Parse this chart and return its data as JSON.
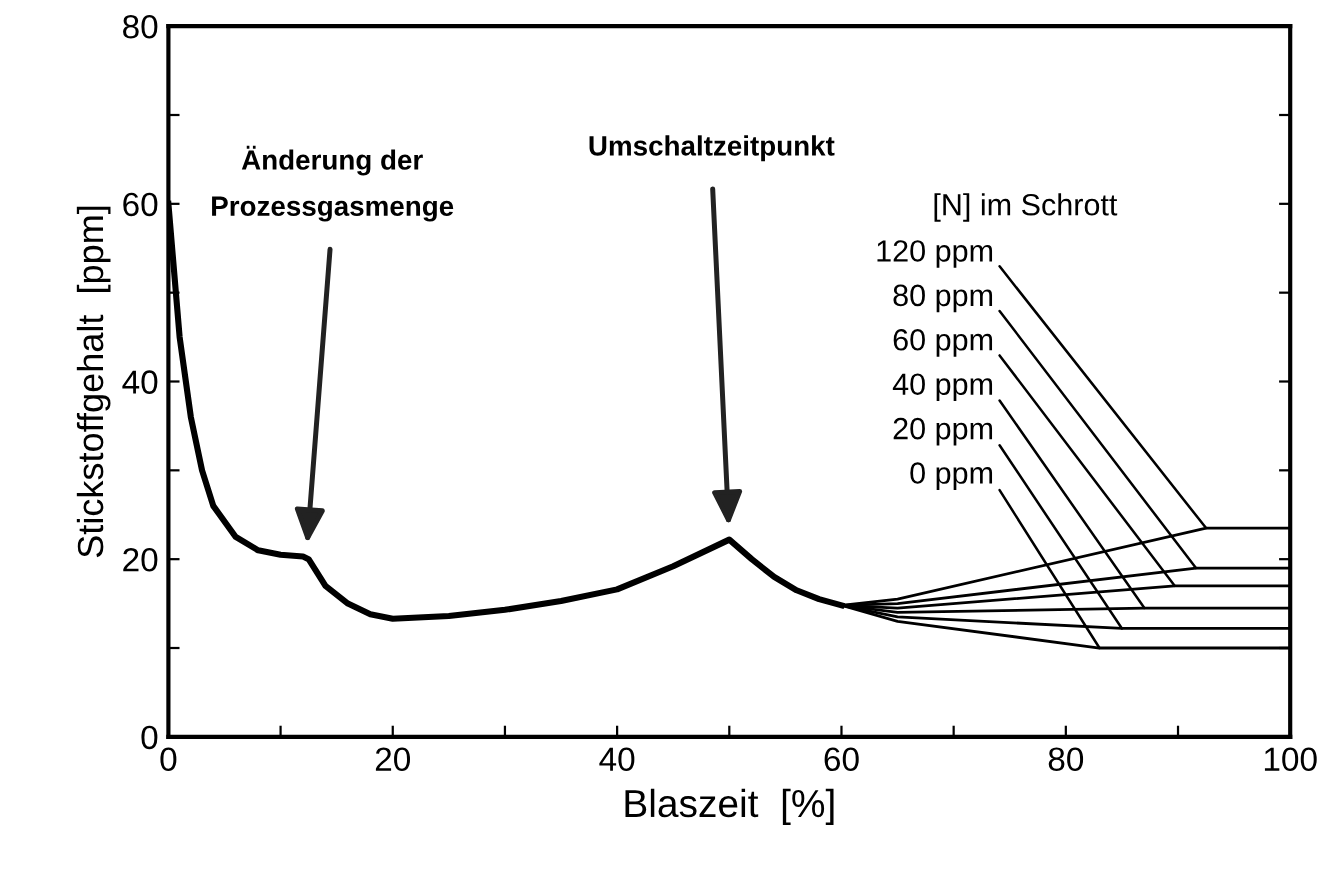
{
  "chart_data": {
    "type": "line",
    "xlabel": "Blaszeit  [%]",
    "ylabel": "Stickstoffgehalt  [ppm]",
    "legend_title": "[N] im Schrott",
    "xlim": [
      0,
      100
    ],
    "ylim": [
      0,
      80
    ],
    "xticks": [
      0,
      {
        "value": 10,
        "label": null
      },
      20,
      {
        "value": 30,
        "label": null
      },
      40,
      {
        "value": 50,
        "label": null
      },
      60,
      {
        "value": 70,
        "label": null
      },
      80,
      {
        "value": 90,
        "label": null
      },
      100
    ],
    "yticks": [
      0,
      {
        "value": 10,
        "label": null
      },
      20,
      {
        "value": 30,
        "label": null
      },
      40,
      {
        "value": 50,
        "label": null
      },
      60,
      {
        "value": 70,
        "label": null
      },
      80
    ],
    "grid": false,
    "legend": false,
    "line_style": "solid",
    "marker": "none",
    "annotations": [
      {
        "text": "Änderung der\nProzessgasmenge",
        "x": 12.3,
        "y": 20.5
      },
      {
        "text": "Umschaltzeitpunkt",
        "x": 50,
        "y": 22.5
      }
    ],
    "series": [
      {
        "color": "#000000",
        "x": [
          0,
          1,
          2,
          3,
          4,
          6,
          8,
          10,
          12,
          12.5,
          14,
          16,
          18,
          20,
          25,
          30,
          35,
          40,
          45,
          50,
          52,
          54,
          56,
          58,
          60
        ],
        "values": [
          60,
          45,
          36,
          30,
          26,
          22.5,
          21,
          20.5,
          20.3,
          20,
          17,
          15,
          13.8,
          13.3,
          13.6,
          14.3,
          15.3,
          16.6,
          19.2,
          22.2,
          20,
          18,
          16.5,
          15.5,
          14.8
        ]
      },
      {
        "name": "120 ppm",
        "color": "#000000",
        "x": [
          60,
          65,
          92.5,
          100
        ],
        "values": [
          14.8,
          15.5,
          23.5,
          23.5
        ]
      },
      {
        "name": "80 ppm",
        "color": "#000000",
        "x": [
          60,
          65,
          91.6,
          100
        ],
        "values": [
          14.8,
          15,
          19,
          19
        ]
      },
      {
        "name": "60 ppm",
        "color": "#000000",
        "x": [
          60,
          65,
          89.7,
          100
        ],
        "values": [
          14.8,
          14.5,
          17,
          17
        ]
      },
      {
        "name": "40 ppm",
        "color": "#000000",
        "x": [
          60,
          65,
          87,
          100
        ],
        "values": [
          14.8,
          14,
          14.5,
          14.5
        ]
      },
      {
        "name": "20 ppm",
        "color": "#000000",
        "x": [
          60,
          65,
          85,
          100
        ],
        "values": [
          14.8,
          13.5,
          12.2,
          12.2
        ]
      },
      {
        "name": "0 ppm",
        "color": "#000000",
        "x": [
          60,
          65,
          83,
          100
        ],
        "values": [
          14.8,
          13,
          10,
          10
        ]
      }
    ]
  }
}
